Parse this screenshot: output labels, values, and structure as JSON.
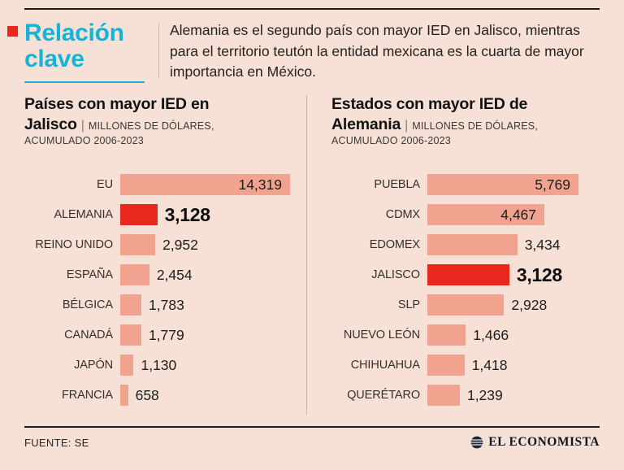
{
  "header": {
    "bullet_color": "#e8281e",
    "title_color": "#13b4d8",
    "title_line1": "Relación",
    "title_line2": "clave",
    "intro": "Alemania es el segundo país con mayor IED en Jalisco, mientras para el territorio teutón la entidad mexicana es la cuarta de mayor importancia en México."
  },
  "chart_data": [
    {
      "type": "bar",
      "title_line1": "Países con mayor IED en",
      "title_line2": "Jalisco",
      "separator": "|",
      "units_line1": "MILLONES DE DÓLARES,",
      "units_line2": "ACUMULADO 2006-2023",
      "categories": [
        "EU",
        "ALEMANIA",
        "REINO UNIDO",
        "ESPAÑA",
        "BÉLGICA",
        "CANADÁ",
        "JAPÓN",
        "FRANCIA"
      ],
      "values": [
        14319,
        3128,
        2952,
        2454,
        1783,
        1779,
        1130,
        658
      ],
      "value_labels": [
        "14,319",
        "3,128",
        "2,952",
        "2,454",
        "1,783",
        "1,779",
        "1,130",
        "658"
      ],
      "value_inside": [
        true,
        false,
        false,
        false,
        false,
        false,
        false,
        false
      ],
      "highlight_index": 1,
      "bar_color": "#f2a38f",
      "highlight_color": "#e8281e",
      "xlim": [
        0,
        14319
      ],
      "legend": "none",
      "grid": false
    },
    {
      "type": "bar",
      "title_line1": "Estados con mayor IED de",
      "title_line2": "Alemania",
      "separator": "|",
      "units_line1": "MILLONES DE DÓLARES,",
      "units_line2": "ACUMULADO 2006-2023",
      "categories": [
        "PUEBLA",
        "CDMX",
        "EDOMEX",
        "JALISCO",
        "SLP",
        "NUEVO LEÓN",
        "CHIHUAHUA",
        "QUERÉTARO"
      ],
      "values": [
        5769,
        4467,
        3434,
        3128,
        2928,
        1466,
        1418,
        1239
      ],
      "value_labels": [
        "5,769",
        "4,467",
        "3,434",
        "3,128",
        "2,928",
        "1,466",
        "1,418",
        "1,239"
      ],
      "value_inside": [
        true,
        true,
        false,
        false,
        false,
        false,
        false,
        false
      ],
      "highlight_index": 3,
      "bar_color": "#f2a38f",
      "highlight_color": "#e8281e",
      "xlim": [
        0,
        5769
      ],
      "legend": "none",
      "grid": false
    }
  ],
  "footer": {
    "source": "FUENTE: SE",
    "brand": "EL ECONOMISTA"
  }
}
